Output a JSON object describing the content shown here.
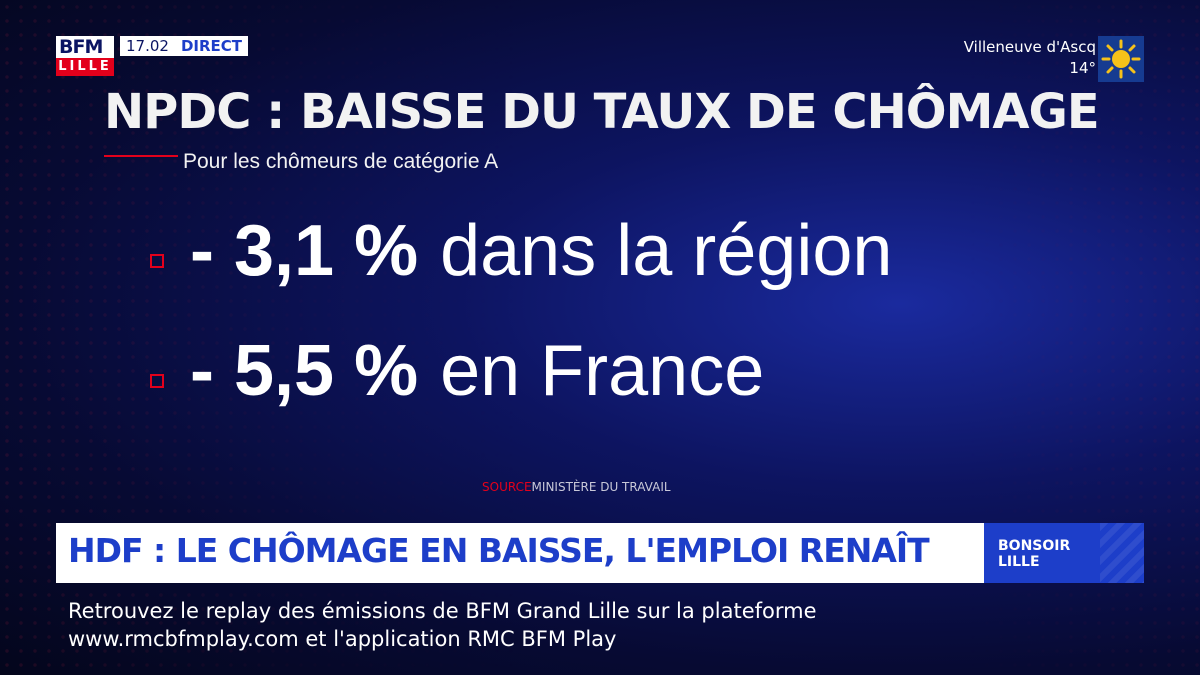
{
  "channel": {
    "logo": "BFM",
    "city": "LILLE",
    "time": "17.02",
    "live": "DIRECT"
  },
  "weather": {
    "city": "Villeneuve d'Ascq",
    "temp": "14°",
    "icon": "sun-icon"
  },
  "slide": {
    "title": "NPDC : BAISSE DU TAUX DE CHÔMAGE",
    "subtitle": "Pour les chômeurs de catégorie A",
    "stats": [
      {
        "value": "- 3,1 %",
        "label": "dans la région"
      },
      {
        "value": "- 5,5 %",
        "label": "en France"
      }
    ],
    "source_label": "SOURCE",
    "source": "MINISTÈRE DU TRAVAIL"
  },
  "lower_third": {
    "headline": "HDF : LE CHÔMAGE EN BAISSE, L'EMPLOI RENAÎT",
    "show": "BONSOIR LILLE",
    "ticker_line1": "Retrouvez le replay des émissions de BFM Grand Lille sur la plateforme",
    "ticker_line2": "www.rmcbfmplay.com et l'application RMC BFM Play"
  },
  "colors": {
    "accent_red": "#e3001b",
    "brand_blue": "#1d3ec9",
    "background": "#0d1460"
  }
}
